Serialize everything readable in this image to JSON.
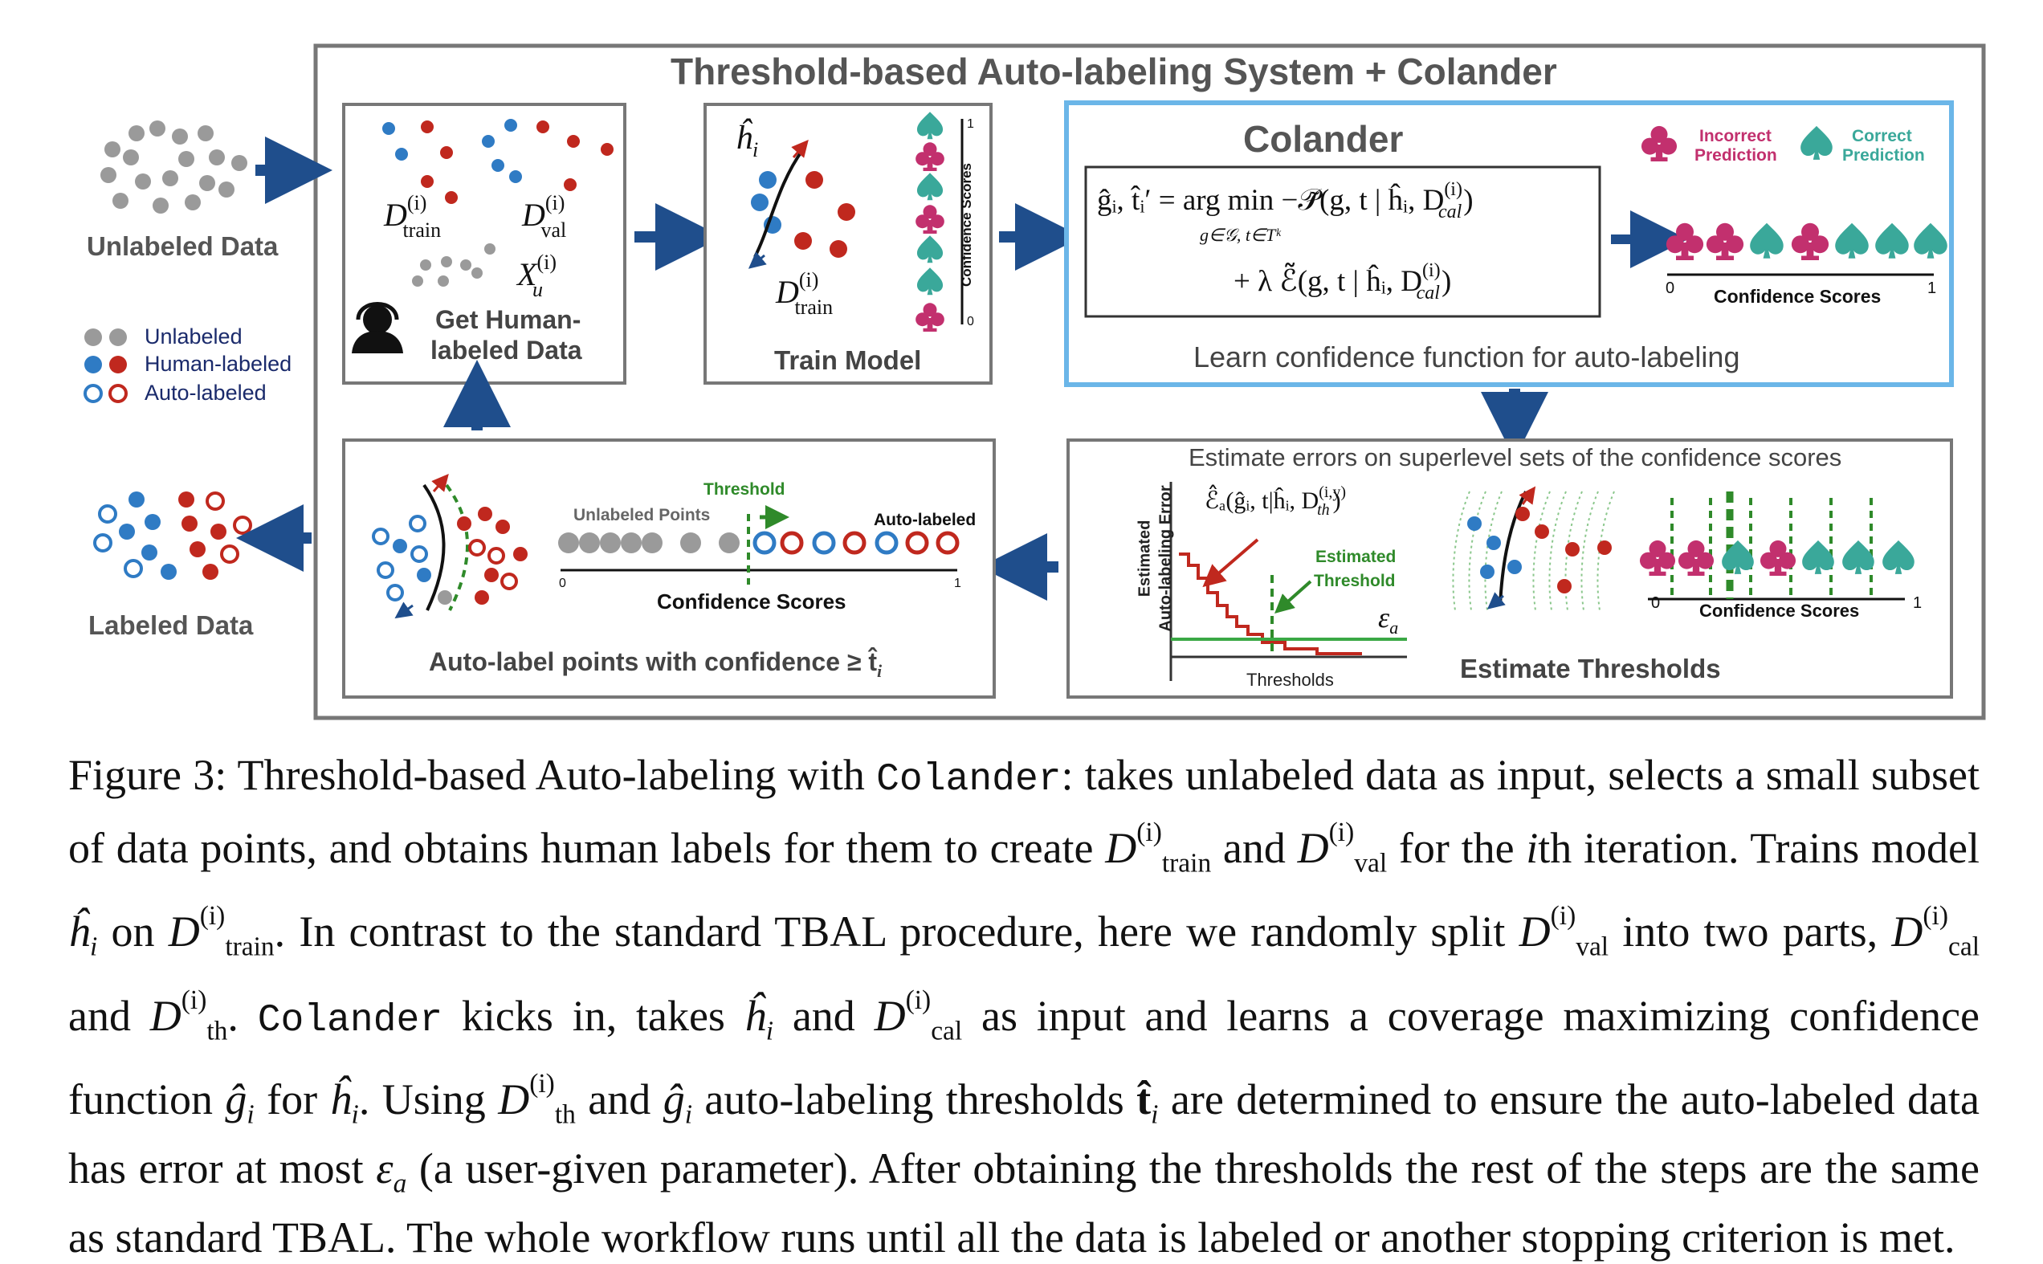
{
  "figure": {
    "main_title": "Threshold-based Auto-labeling System + Colander",
    "left": {
      "unlabeled_data": "Unlabeled Data",
      "labeled_data": "Labeled Data",
      "legend": {
        "unlabeled": "Unlabeled",
        "human_labeled": "Human-labeled",
        "auto_labeled": "Auto-labeled"
      }
    },
    "human_box": {
      "label_line1": "Get Human-",
      "label_line2": "labeled Data",
      "d_train": "D",
      "d_train_sub": "train",
      "d_train_sup": "(i)",
      "d_val": "D",
      "d_val_sub": "val",
      "d_val_sup": "(i)",
      "x_u": "X",
      "x_u_sub": "u",
      "x_u_sup": "(i)"
    },
    "train_box": {
      "label": "Train Model",
      "h_hat": "ĥ",
      "h_hat_sub": "i",
      "d_train": "D",
      "d_train_sub": "train",
      "d_train_sup": "(i)",
      "axis_label": "Confidence Scores",
      "tick_0": "0",
      "tick_1": "1"
    },
    "colander_box": {
      "title": "Colander",
      "eq_line1": "ĝᵢ, t̂ᵢ′ = arg min −𝒫̃(g, t | ĥᵢ, D",
      "eq_line1_sup": "(i)",
      "eq_line1_sub": "cal",
      "eq_line1_end": ")",
      "eq_under": "g∈𝒢, t∈Tᵏ",
      "eq_line2": "+ λ ℰ̃(g, t | ĥᵢ, D",
      "eq_line2_sup": "(i)",
      "eq_line2_sub": "cal",
      "eq_line2_end": ")",
      "caption": "Learn confidence function for auto-labeling"
    },
    "legend_right": {
      "incorrect_line1": "Incorrect",
      "incorrect_line2": "Prediction",
      "correct_line1": "Correct",
      "correct_line2": "Prediction",
      "axis_label": "Confidence Scores",
      "tick_0": "0",
      "tick_1": "1"
    },
    "estimate_box": {
      "header": "Estimate errors on superlevel sets of the confidence scores",
      "formula": "ℰ̂ₐ(ĝᵢ, t|ĥᵢ, D",
      "formula_sup": "(i,y)",
      "formula_sub": "th",
      "formula_end": ")",
      "ylabel_line1": "Estimated",
      "ylabel_line2": "Auto-labeling Error",
      "xlabel": "Thresholds",
      "est_line1": "Estimated",
      "est_line2": "Threshold",
      "epsilon": "ε",
      "epsilon_sub": "a",
      "label": "Estimate Thresholds",
      "axis_label": "Confidence Scores",
      "tick_0": "0",
      "tick_1": "1"
    },
    "auto_box": {
      "threshold": "Threshold",
      "unlabeled_points": "Unlabeled Points",
      "auto_labeled": "Auto-labeled",
      "axis_label": "Confidence Scores",
      "tick_0": "0",
      "tick_1": "1",
      "label": "Auto-label points with confidence ≥ t̂",
      "label_sub": "i"
    },
    "colors": {
      "blue": "#2f7bc4",
      "red": "#c0281e",
      "grey": "#9a9a9a",
      "navy_arrow": "#1f4e8c",
      "magenta": "#c2306e",
      "teal": "#3aa89a",
      "green": "#2f8a2a",
      "colander_border": "#6bb6e8",
      "box_border": "#777777"
    }
  },
  "caption": {
    "t1": "Figure 3: Threshold-based Auto-labeling with ",
    "colander1": "Colander",
    "t2": ": takes unlabeled data as input, selects a small subset of data points, and obtains human labels for them to create ",
    "t3": " and ",
    "t4": " for the ",
    "t5": "th iteration. Trains model ",
    "t6": " on ",
    "t7": ". In contrast to the standard TBAL procedure, here we randomly split ",
    "t8": " into two parts, ",
    "t9": " and ",
    "t10": ". ",
    "colander2": "Colander",
    "t11": " kicks in, takes ",
    "t12": " and ",
    "t13": " as input and learns a coverage maximizing confidence function ",
    "t14": " for ",
    "t15": ". Using ",
    "t16": " and ",
    "t17": " auto-labeling thresholds ",
    "t18": " are determined to ensure the auto-labeled data has error at most ",
    "t19": " (a user-given parameter). After obtaining the thresholds the rest of the steps are the same as standard TBAL. The whole workflow runs until all the data is labeled or another stopping criterion is met.",
    "D": "D",
    "sup_i": "(i)",
    "train": "train",
    "val": "val",
    "cal": "cal",
    "th": "th",
    "i": "i",
    "h_hat": "ĥ",
    "g_hat": "ĝ",
    "t_hat": "t̂",
    "eps": "ε",
    "a": "a"
  }
}
